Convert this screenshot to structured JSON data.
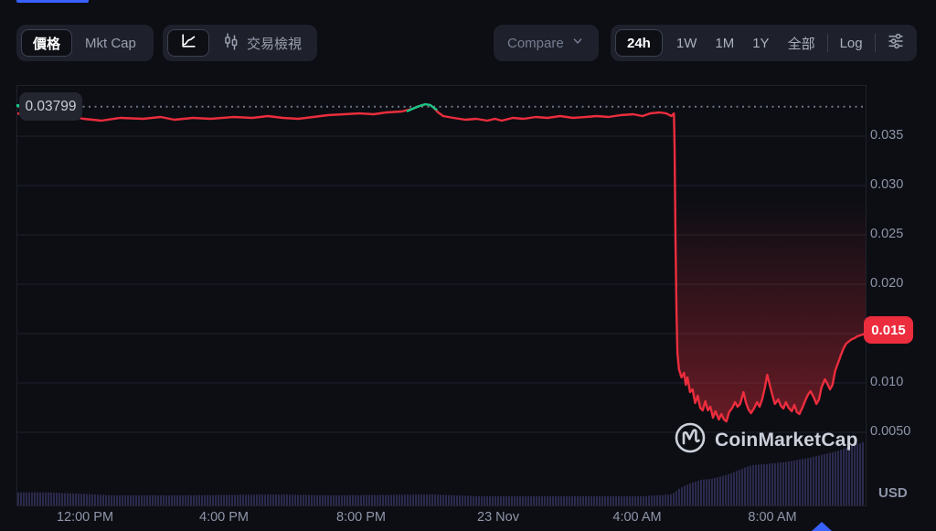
{
  "toolbar": {
    "price_label": "價格",
    "mkt_cap_label": "Mkt Cap",
    "trading_view_label": "交易檢視",
    "compare_label": "Compare",
    "range": {
      "h24": "24h",
      "w1": "1W",
      "m1": "1M",
      "y1": "1Y",
      "all": "全部",
      "log": "Log"
    }
  },
  "chart": {
    "open_label": "0.03799",
    "last_badge": "0.015",
    "watermark": "CoinMarketCap",
    "unit": "USD"
  },
  "axes": {
    "y_labels": [
      "0.035",
      "0.030",
      "0.025",
      "0.020",
      "0.010",
      "0.0050"
    ],
    "x_labels": [
      "12:00 PM",
      "4:00 PM",
      "8:00 PM",
      "23 Nov",
      "4:00 AM",
      "8:00 AM"
    ]
  },
  "colors": {
    "accent_red": "#ec2d3d",
    "green": "#16c784",
    "blue": "#3861fb",
    "volume": "#2c2a4d",
    "gridline": "#20232e",
    "dotted": "#6d7386"
  },
  "chart_data": {
    "type": "line",
    "title": "24h cryptocurrency price chart (USD)",
    "unit": "USD",
    "open_price": 0.03799,
    "last_price": 0.015,
    "y_ticks": [
      0.035,
      0.03,
      0.025,
      0.02,
      0.015,
      0.01,
      0.005
    ],
    "x_tick_labels": [
      "12:00 PM",
      "4:00 PM",
      "8:00 PM",
      "23 Nov",
      "4:00 AM",
      "8:00 AM"
    ],
    "grid": "horizontal-only",
    "glow_start_index": 52,
    "series": [
      {
        "name": "price",
        "points": [
          [
            0.0,
            0.03731
          ],
          [
            0.029,
            0.03694
          ],
          [
            0.056,
            0.03713
          ],
          [
            0.078,
            0.03676
          ],
          [
            0.099,
            0.03657
          ],
          [
            0.121,
            0.03685
          ],
          [
            0.148,
            0.03676
          ],
          [
            0.169,
            0.03694
          ],
          [
            0.185,
            0.03667
          ],
          [
            0.207,
            0.03685
          ],
          [
            0.228,
            0.03676
          ],
          [
            0.255,
            0.03694
          ],
          [
            0.277,
            0.03685
          ],
          [
            0.295,
            0.03704
          ],
          [
            0.313,
            0.03685
          ],
          [
            0.331,
            0.03676
          ],
          [
            0.349,
            0.03694
          ],
          [
            0.366,
            0.03713
          ],
          [
            0.385,
            0.03722
          ],
          [
            0.403,
            0.03731
          ],
          [
            0.42,
            0.03722
          ],
          [
            0.435,
            0.03741
          ],
          [
            0.453,
            0.0375
          ],
          [
            0.466,
            0.03778
          ],
          [
            0.474,
            0.03806
          ],
          [
            0.481,
            0.03824
          ],
          [
            0.487,
            0.03815
          ],
          [
            0.491,
            0.03787
          ],
          [
            0.496,
            0.03741
          ],
          [
            0.502,
            0.03704
          ],
          [
            0.514,
            0.03685
          ],
          [
            0.528,
            0.03667
          ],
          [
            0.541,
            0.03676
          ],
          [
            0.554,
            0.03657
          ],
          [
            0.563,
            0.03676
          ],
          [
            0.571,
            0.03657
          ],
          [
            0.584,
            0.03685
          ],
          [
            0.597,
            0.03676
          ],
          [
            0.611,
            0.03694
          ],
          [
            0.625,
            0.03685
          ],
          [
            0.64,
            0.03704
          ],
          [
            0.655,
            0.03685
          ],
          [
            0.67,
            0.03694
          ],
          [
            0.683,
            0.03704
          ],
          [
            0.697,
            0.03694
          ],
          [
            0.711,
            0.03713
          ],
          [
            0.726,
            0.03722
          ],
          [
            0.737,
            0.03704
          ],
          [
            0.746,
            0.03731
          ],
          [
            0.757,
            0.03741
          ],
          [
            0.765,
            0.03731
          ],
          [
            0.771,
            0.03704
          ],
          [
            0.774,
            0.03731
          ],
          [
            0.7748,
            0.03389
          ],
          [
            0.7759,
            0.02463
          ],
          [
            0.777,
            0.01722
          ],
          [
            0.7781,
            0.01306
          ],
          [
            0.78,
            0.01139
          ],
          [
            0.783,
            0.01056
          ],
          [
            0.786,
            0.01102
          ],
          [
            0.788,
            0.00981
          ],
          [
            0.79,
            0.01056
          ],
          [
            0.793,
            0.00907
          ],
          [
            0.796,
            0.00935
          ],
          [
            0.799,
            0.00796
          ],
          [
            0.802,
            0.0087
          ],
          [
            0.805,
            0.0075
          ],
          [
            0.808,
            0.00722
          ],
          [
            0.811,
            0.00815
          ],
          [
            0.814,
            0.00722
          ],
          [
            0.817,
            0.00759
          ],
          [
            0.82,
            0.00648
          ],
          [
            0.823,
            0.00713
          ],
          [
            0.827,
            0.0063
          ],
          [
            0.83,
            0.00685
          ],
          [
            0.833,
            0.0063
          ],
          [
            0.836,
            0.00611
          ],
          [
            0.839,
            0.00704
          ],
          [
            0.843,
            0.0075
          ],
          [
            0.846,
            0.00806
          ],
          [
            0.849,
            0.00759
          ],
          [
            0.852,
            0.00787
          ],
          [
            0.856,
            0.00907
          ],
          [
            0.859,
            0.00796
          ],
          [
            0.862,
            0.00731
          ],
          [
            0.865,
            0.00694
          ],
          [
            0.869,
            0.0075
          ],
          [
            0.872,
            0.00806
          ],
          [
            0.875,
            0.00759
          ],
          [
            0.878,
            0.00833
          ],
          [
            0.881,
            0.00944
          ],
          [
            0.884,
            0.01083
          ],
          [
            0.887,
            0.00981
          ],
          [
            0.89,
            0.0088
          ],
          [
            0.893,
            0.00787
          ],
          [
            0.897,
            0.00833
          ],
          [
            0.9,
            0.00769
          ],
          [
            0.903,
            0.00741
          ],
          [
            0.906,
            0.00806
          ],
          [
            0.909,
            0.0075
          ],
          [
            0.913,
            0.00713
          ],
          [
            0.916,
            0.00778
          ],
          [
            0.919,
            0.00704
          ],
          [
            0.922,
            0.00685
          ],
          [
            0.926,
            0.00759
          ],
          [
            0.929,
            0.00824
          ],
          [
            0.932,
            0.0088
          ],
          [
            0.935,
            0.00917
          ],
          [
            0.939,
            0.00852
          ],
          [
            0.942,
            0.00787
          ],
          [
            0.945,
            0.00833
          ],
          [
            0.948,
            0.00954
          ],
          [
            0.952,
            0.01037
          ],
          [
            0.955,
            0.00991
          ],
          [
            0.958,
            0.00935
          ],
          [
            0.961,
            0.00981
          ],
          [
            0.964,
            0.0112
          ],
          [
            0.968,
            0.01213
          ],
          [
            0.971,
            0.01287
          ],
          [
            0.974,
            0.01352
          ],
          [
            0.977,
            0.01398
          ],
          [
            0.981,
            0.01426
          ],
          [
            0.984,
            0.01444
          ],
          [
            0.987,
            0.01454
          ],
          [
            0.99,
            0.01472
          ],
          [
            0.993,
            0.01481
          ],
          [
            0.997,
            0.01491
          ],
          [
            1.0,
            0.01509
          ]
        ]
      }
    ],
    "green_segment": [
      [
        0.46,
        0.03755
      ],
      [
        0.466,
        0.03778
      ],
      [
        0.474,
        0.03806
      ],
      [
        0.481,
        0.03824
      ],
      [
        0.487,
        0.03815
      ],
      [
        0.491,
        0.03787
      ],
      [
        0.494,
        0.0377
      ]
    ],
    "volume_profile": [
      [
        0.0,
        0.031
      ],
      [
        0.034,
        0.031
      ],
      [
        0.072,
        0.028
      ],
      [
        0.11,
        0.024
      ],
      [
        0.196,
        0.024
      ],
      [
        0.304,
        0.026
      ],
      [
        0.369,
        0.024
      ],
      [
        0.487,
        0.026
      ],
      [
        0.541,
        0.022
      ],
      [
        0.627,
        0.022
      ],
      [
        0.735,
        0.022
      ],
      [
        0.77,
        0.026
      ],
      [
        0.775,
        0.033
      ],
      [
        0.78,
        0.041
      ],
      [
        0.787,
        0.048
      ],
      [
        0.794,
        0.054
      ],
      [
        0.805,
        0.061
      ],
      [
        0.816,
        0.063
      ],
      [
        0.826,
        0.068
      ],
      [
        0.837,
        0.074
      ],
      [
        0.848,
        0.083
      ],
      [
        0.859,
        0.092
      ],
      [
        0.866,
        0.096
      ],
      [
        0.877,
        0.098
      ],
      [
        0.888,
        0.1
      ],
      [
        0.899,
        0.102
      ],
      [
        0.909,
        0.105
      ],
      [
        0.92,
        0.109
      ],
      [
        0.931,
        0.113
      ],
      [
        0.942,
        0.118
      ],
      [
        0.95,
        0.122
      ],
      [
        0.959,
        0.126
      ],
      [
        0.968,
        0.131
      ],
      [
        0.975,
        0.137
      ],
      [
        0.984,
        0.144
      ],
      [
        0.992,
        0.148
      ],
      [
        1.0,
        0.155
      ]
    ]
  }
}
